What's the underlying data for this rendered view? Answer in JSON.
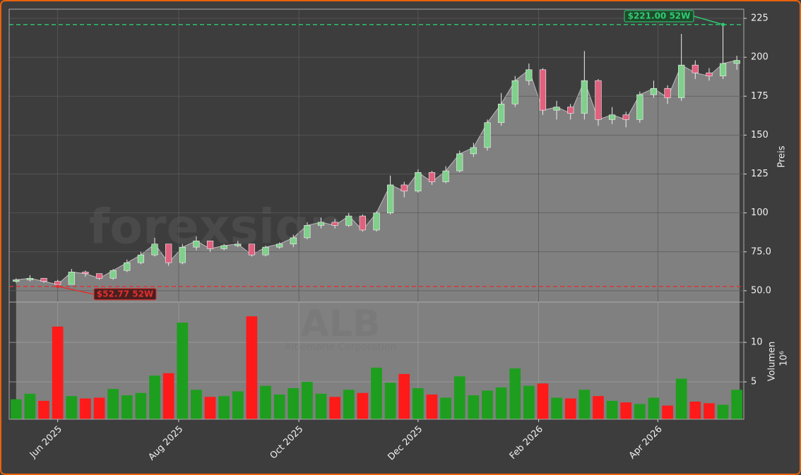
{
  "chart_data": {
    "type": "candlestick",
    "watermark": "forexsignale.trade",
    "ticker": "ALB",
    "company": "Albemarle Corporation",
    "categories": [
      null,
      null,
      null,
      null,
      null,
      null,
      null,
      null,
      null,
      null,
      null,
      null,
      null,
      null,
      null,
      null,
      null,
      null,
      null,
      null,
      null,
      null,
      null,
      null,
      null,
      null,
      null,
      null,
      null,
      null,
      null,
      null,
      null,
      null,
      null,
      null,
      null,
      null,
      null,
      null,
      null,
      null,
      null,
      null,
      null,
      null,
      null,
      null,
      null,
      null,
      null,
      null,
      null
    ],
    "open": [
      56,
      57,
      58,
      56,
      54,
      62,
      61,
      58,
      63,
      68,
      73,
      80,
      68,
      78,
      82,
      77,
      79,
      80,
      73,
      78,
      80,
      84,
      92,
      94,
      92,
      98,
      89,
      100,
      118,
      114,
      126,
      120,
      127,
      138,
      142,
      158,
      170,
      185,
      192,
      166,
      168,
      164,
      185,
      160,
      163,
      160,
      176,
      180,
      174,
      195,
      190,
      188,
      196
    ],
    "high": [
      58,
      60,
      58,
      57,
      64,
      63,
      61,
      64,
      70,
      75,
      84,
      80,
      80,
      85,
      82,
      80,
      82,
      80,
      79,
      81,
      86,
      94,
      97,
      96,
      100,
      99,
      101,
      124,
      120,
      128,
      127,
      130,
      140,
      145,
      160,
      177,
      188,
      196,
      193,
      172,
      170,
      204,
      186,
      168,
      165,
      178,
      185,
      182,
      215,
      198,
      193,
      221,
      201
    ],
    "low": [
      55,
      56,
      55,
      52.77,
      54,
      59,
      57,
      57,
      62,
      67,
      72,
      66,
      67,
      76,
      75,
      76,
      78,
      72,
      72,
      77,
      78,
      83,
      90,
      90,
      91,
      88,
      88,
      99,
      110,
      113,
      118,
      119,
      126,
      136,
      140,
      156,
      168,
      182,
      163,
      160,
      160,
      160,
      156,
      157,
      155,
      158,
      174,
      170,
      172,
      186,
      185,
      186,
      192
    ],
    "close": [
      57,
      58,
      56,
      54,
      62,
      61,
      58,
      63,
      68,
      73,
      80,
      68,
      78,
      82,
      77,
      79,
      80,
      73,
      78,
      80,
      84,
      92,
      94,
      92,
      98,
      89,
      100,
      118,
      114,
      126,
      120,
      127,
      138,
      142,
      158,
      170,
      185,
      192,
      166,
      168,
      164,
      185,
      160,
      163,
      160,
      176,
      180,
      174,
      195,
      190,
      188,
      196,
      198
    ],
    "volume": [
      2.8,
      3.5,
      2.6,
      12.0,
      3.2,
      2.9,
      3.0,
      4.1,
      3.3,
      3.6,
      5.8,
      6.1,
      12.5,
      4.0,
      3.1,
      3.2,
      3.8,
      13.3,
      4.5,
      3.4,
      4.2,
      5.0,
      3.5,
      3.1,
      4.0,
      3.6,
      6.8,
      4.9,
      6.0,
      4.2,
      3.4,
      3.0,
      5.7,
      3.3,
      3.9,
      4.3,
      6.7,
      4.5,
      4.8,
      3.0,
      2.9,
      4.0,
      3.2,
      2.6,
      2.4,
      2.2,
      3.0,
      2.0,
      5.4,
      2.5,
      2.3,
      2.1,
      4.0
    ],
    "up_color": "#1e9e1e",
    "down_color": "#ff1a1a",
    "candle_up_color": "#7fd08a",
    "candle_down_color": "#e0607e",
    "area_color": "#808080",
    "xlim": [
      -0.5,
      52.5
    ],
    "xticks": [
      {
        "value": 3.0,
        "label": "Jun 2025"
      },
      {
        "value": 11.73,
        "label": "Aug 2025"
      },
      {
        "value": 20.4,
        "label": "Oct 2025"
      },
      {
        "value": 29.0,
        "label": "Dec 2025"
      },
      {
        "value": 37.7,
        "label": "Feb 2026"
      },
      {
        "value": 46.3,
        "label": "Apr 2026"
      }
    ],
    "ylim": [
      42.7,
      230.9
    ],
    "yticks": [
      {
        "value": 50,
        "label": "50.0"
      },
      {
        "value": 75,
        "label": "75.0"
      },
      100,
      125,
      150,
      175,
      200,
      225
    ],
    "y_label": "Preis",
    "volume_ylim": [
      0.27,
      15.1
    ],
    "volume_yticks": [
      5,
      10
    ],
    "volume_label": "Volumen",
    "volume_scale": "10⁶",
    "grid": true,
    "annotations": [
      {
        "value": 221.0,
        "index": 51,
        "label": "$221.00 52W",
        "color": "#2ecc71"
      },
      {
        "value": 52.77,
        "index": 3,
        "label": "$52.77 52W",
        "color": "#e03030"
      }
    ]
  }
}
